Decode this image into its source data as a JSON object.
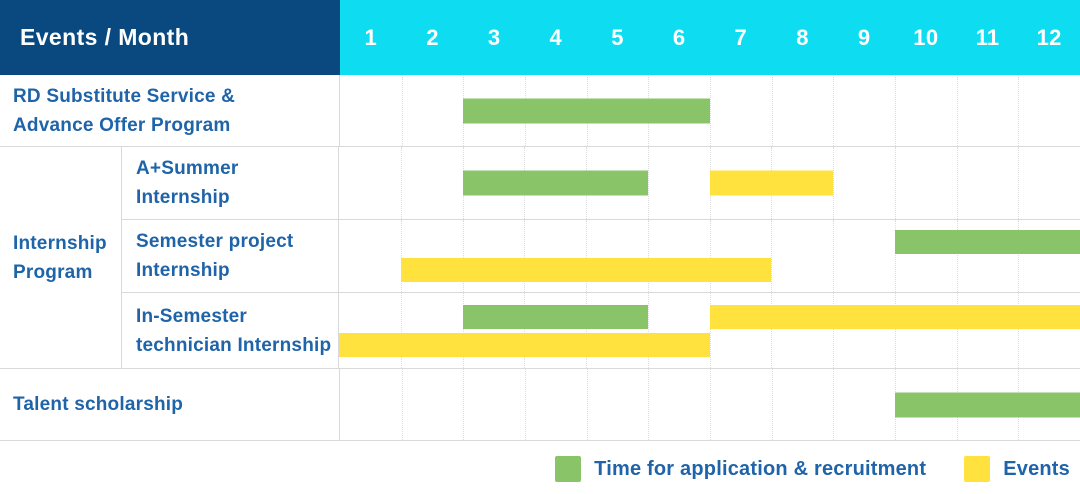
{
  "header": {
    "title": "Events / Month"
  },
  "colors": {
    "navy_header": "#09497F",
    "cyan_header": "#0EDCF0",
    "recruitment_green": "#8AC468",
    "event_yellow": "#FFE23E",
    "label_blue": "#1F64A8",
    "row_border": "#D9D9D9",
    "month_gridline": "#DCDCDC"
  },
  "chart_data": {
    "type": "table",
    "subtype": "gantt-month-schedule",
    "months": [
      "1",
      "2",
      "3",
      "4",
      "5",
      "6",
      "7",
      "8",
      "9",
      "10",
      "11",
      "12"
    ],
    "x_range": [
      1,
      12
    ],
    "grid": "dotted-vertical-month-lines",
    "group": {
      "label": "Internship\nProgram"
    },
    "rows": [
      {
        "label": "RD Substitute Service &\nAdvance Offer Program",
        "in_group": false,
        "bars": [
          {
            "series": "recruitment",
            "start_month": 3,
            "end_month": 6,
            "line": "center"
          }
        ]
      },
      {
        "label": "A+Summer\nInternship",
        "in_group": true,
        "bars": [
          {
            "series": "recruitment",
            "start_month": 3,
            "end_month": 5,
            "line": "center"
          },
          {
            "series": "event",
            "start_month": 7,
            "end_month": 8,
            "line": "center"
          }
        ]
      },
      {
        "label": "Semester project\nInternship",
        "in_group": true,
        "bars": [
          {
            "series": "recruitment",
            "start_month": 10,
            "end_month": 12,
            "line": "top"
          },
          {
            "series": "event",
            "start_month": 2,
            "end_month": 7,
            "line": "bottom"
          }
        ]
      },
      {
        "label": "In-Semester\ntechnician Internship",
        "in_group": true,
        "bars": [
          {
            "series": "recruitment",
            "start_month": 3,
            "end_month": 5,
            "line": "top"
          },
          {
            "series": "event",
            "start_month": 7,
            "end_month": 12,
            "line": "top"
          },
          {
            "series": "event",
            "start_month": 1,
            "end_month": 6,
            "line": "bottom"
          }
        ]
      },
      {
        "label": "Talent scholarship",
        "in_group": false,
        "bars": [
          {
            "series": "recruitment",
            "start_month": 10,
            "end_month": 12,
            "line": "center"
          }
        ]
      }
    ],
    "legend": {
      "position": "bottom-right",
      "entries": [
        {
          "series": "recruitment",
          "label": "Time for application & recruitment"
        },
        {
          "series": "event",
          "label": "Events"
        }
      ]
    }
  }
}
